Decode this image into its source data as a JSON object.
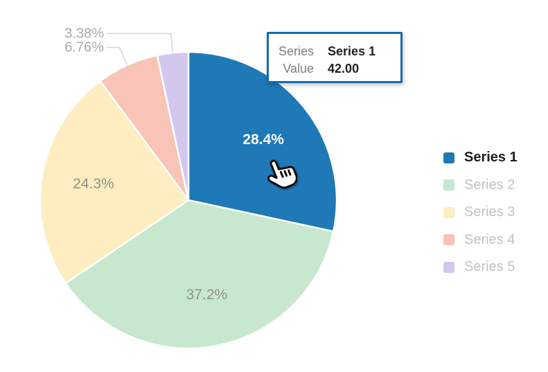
{
  "chart_data": {
    "type": "pie",
    "title": "",
    "start_angle": "top",
    "direction": "clockwise",
    "legend_position": "right",
    "categories": [
      "Series 1",
      "Series 2",
      "Series 3",
      "Series 4",
      "Series 5"
    ],
    "values": [
      42,
      55,
      36,
      10,
      5
    ],
    "percent_labels": [
      "28.4%",
      "37.2%",
      "24.3%",
      "6.76%",
      "3.38%"
    ],
    "colors": [
      "#1e79b6",
      "#c7e8cf",
      "#fdedc0",
      "#f8c4b7",
      "#d4c7ee"
    ],
    "label_placement": [
      "inside",
      "inside",
      "inside",
      "outside",
      "outside"
    ],
    "highlighted_slice": "Series 1"
  },
  "tooltip": {
    "series_label": "Series",
    "series_name": "Series 1",
    "value_label": "Value",
    "value_text": "42.00",
    "border_color": "#1769a9"
  },
  "legend": {
    "items": [
      {
        "label": "Series 1",
        "color": "#1e79b6",
        "active": true
      },
      {
        "label": "Series 2",
        "color": "#c7e8cf",
        "active": false
      },
      {
        "label": "Series 3",
        "color": "#fdedc0",
        "active": false
      },
      {
        "label": "Series 4",
        "color": "#f8c4b7",
        "active": false
      },
      {
        "label": "Series 5",
        "color": "#d4c7ee",
        "active": false
      }
    ]
  },
  "cursor": {
    "type": "pointing-hand"
  }
}
